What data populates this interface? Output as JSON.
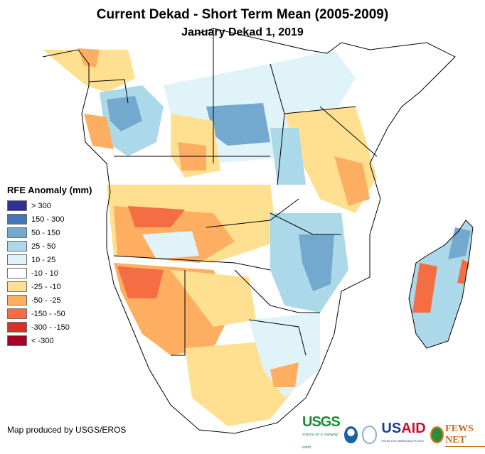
{
  "header": {
    "title": "Current Dekad - Short Term Mean (2005-2009)",
    "subtitle": "January Dekad 1, 2019"
  },
  "legend": {
    "title": "RFE Anomaly (mm)",
    "items": [
      {
        "label": "> 300",
        "color": "#2e3192"
      },
      {
        "label": "150 - 300",
        "color": "#4575b4"
      },
      {
        "label": "50 - 150",
        "color": "#74a9cf"
      },
      {
        "label": "25 - 50",
        "color": "#abd9e9"
      },
      {
        "label": "10 - 25",
        "color": "#e0f3f8"
      },
      {
        "label": "-10 - 10",
        "color": "#ffffff"
      },
      {
        "label": "-25 - -10",
        "color": "#fee090"
      },
      {
        "label": "-50 - -25",
        "color": "#fdae61"
      },
      {
        "label": "-150 - -50",
        "color": "#f46d43"
      },
      {
        "label": "-300 - -150",
        "color": "#d73027"
      },
      {
        "label": "< -300",
        "color": "#a50026"
      }
    ]
  },
  "footer": {
    "credit": "Map produced by USGS/EROS",
    "logos": {
      "usgs": "USGS",
      "usgs_tagline": "science for a changing world",
      "usaid_us": "US",
      "usaid_aid": "AID",
      "usaid_tagline": "FROM THE AMERICAN PEOPLE",
      "fews": "FEWS NET"
    }
  }
}
